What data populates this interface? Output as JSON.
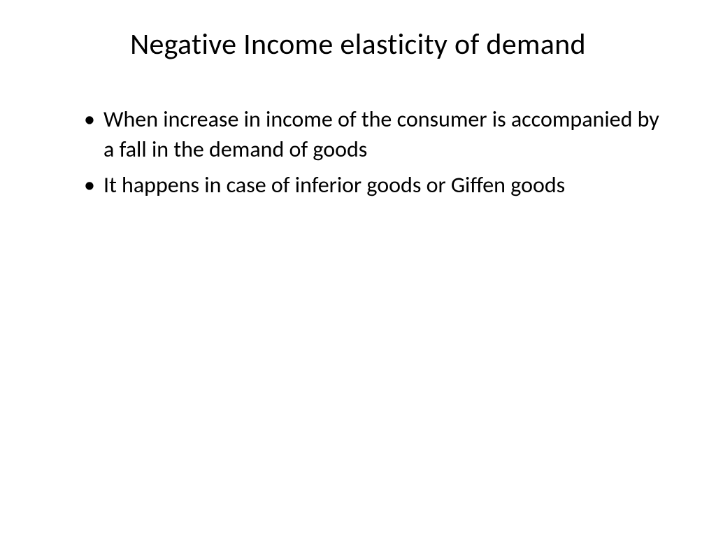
{
  "slide": {
    "title": "Negative Income elasticity of demand",
    "bullets": [
      "When increase in income of the consumer is accompanied by a fall in the demand of goods",
      "It happens in case of inferior goods or Giffen goods"
    ],
    "background_color": "#ffffff",
    "text_color": "#000000",
    "title_fontsize": 42,
    "bullet_fontsize": 32
  }
}
